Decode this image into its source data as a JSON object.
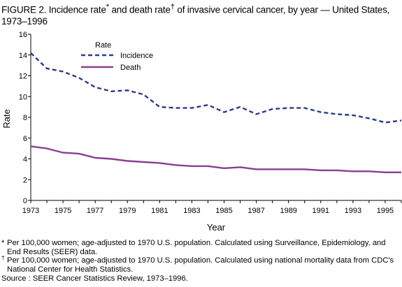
{
  "figure": {
    "title_prefix": "FIGURE 2. Incidence rate",
    "title_mark1": "*",
    "title_mid": " and death rate",
    "title_mark2": "†",
    "title_suffix": " of invasive cervical cancer, by year — United States,  1973–1996"
  },
  "notes": {
    "note1_mark": "*",
    "note1": "Per 100,000 women; age-adjusted to 1970 U.S. population. Calculated using Surveillance, Epidemiology, and End Results (SEER) data.",
    "note2_mark": "†",
    "note2": "Per 100,000 women; age-adjusted to 1970 U.S. population. Calculated using national mortality data from CDC's National Center for Health Statistics.",
    "source": "Source : SEER Cancer Statistics Review, 1973–1996."
  },
  "chart_data": {
    "type": "line",
    "xlabel": "Year",
    "ylabel": "Rate",
    "xlim": [
      1973,
      1996
    ],
    "ylim": [
      0,
      16
    ],
    "x_ticks": [
      1973,
      1974,
      1975,
      1976,
      1977,
      1978,
      1979,
      1980,
      1981,
      1982,
      1983,
      1984,
      1985,
      1986,
      1987,
      1988,
      1989,
      1990,
      1991,
      1992,
      1993,
      1994,
      1995,
      1996
    ],
    "x_tick_labels": [
      "1973",
      "1975",
      "1977",
      "1979",
      "1981",
      "1983",
      "1985",
      "1987",
      "1989",
      "1991",
      "1993",
      "1995"
    ],
    "y_ticks": [
      0,
      2,
      4,
      6,
      8,
      10,
      12,
      14,
      16
    ],
    "y_tick_labels": [
      "0",
      "2",
      "4",
      "6",
      "8",
      "10",
      "12",
      "14",
      "16"
    ],
    "grid": false,
    "legend": {
      "title": "Rate",
      "placement": "top-left"
    },
    "series": [
      {
        "name": "Incidence",
        "style": "dashed",
        "color": "#2a3b8c",
        "x": [
          1973,
          1974,
          1975,
          1976,
          1977,
          1978,
          1979,
          1980,
          1981,
          1982,
          1983,
          1984,
          1985,
          1986,
          1987,
          1988,
          1989,
          1990,
          1991,
          1992,
          1993,
          1994,
          1995,
          1996
        ],
        "values": [
          14.2,
          12.7,
          12.4,
          11.8,
          10.9,
          10.5,
          10.6,
          10.2,
          9.0,
          8.9,
          8.9,
          9.2,
          8.5,
          9.0,
          8.3,
          8.8,
          8.9,
          8.9,
          8.5,
          8.3,
          8.2,
          7.9,
          7.5,
          7.7
        ]
      },
      {
        "name": "Death",
        "style": "solid",
        "color": "#8a3f8f",
        "x": [
          1973,
          1974,
          1975,
          1976,
          1977,
          1978,
          1979,
          1980,
          1981,
          1982,
          1983,
          1984,
          1985,
          1986,
          1987,
          1988,
          1989,
          1990,
          1991,
          1992,
          1993,
          1994,
          1995,
          1996
        ],
        "values": [
          5.2,
          5.0,
          4.6,
          4.5,
          4.1,
          4.0,
          3.8,
          3.7,
          3.6,
          3.4,
          3.3,
          3.3,
          3.1,
          3.2,
          3.0,
          3.0,
          3.0,
          3.0,
          2.9,
          2.9,
          2.8,
          2.8,
          2.7,
          2.7
        ]
      }
    ]
  }
}
